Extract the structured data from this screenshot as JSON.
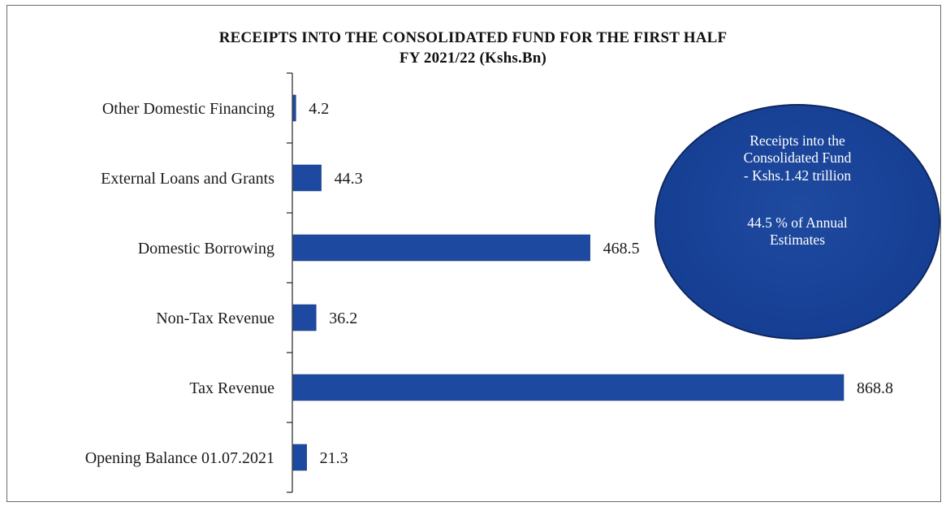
{
  "chart_data": {
    "type": "bar",
    "orientation": "horizontal",
    "title": "RECEIPTS INTO THE CONSOLIDATED FUND FOR THE FIRST HALF",
    "subtitle": "FY 2021/22 (Kshs.Bn)",
    "categories": [
      "Other Domestic Financing",
      "External Loans and Grants",
      "Domestic Borrowing",
      "Non-Tax Revenue",
      "Tax Revenue",
      "Opening Balance 01.07.2021"
    ],
    "values": [
      4.2,
      44.3,
      468.5,
      36.2,
      868.8,
      21.3
    ],
    "value_labels": [
      "4.2",
      "44.3",
      "468.5",
      "36.2",
      "868.8",
      "21.3"
    ],
    "xlim": [
      0,
      868.8
    ],
    "bar_color": "#1d4aa0",
    "grid": false,
    "legend": "none"
  },
  "callout": {
    "lines": [
      "Receipts into the",
      "Consolidated Fund",
      "- Kshs.1.42  trillion",
      "44.5 % of  Annual",
      "Estimates"
    ],
    "color": "#163f93"
  }
}
